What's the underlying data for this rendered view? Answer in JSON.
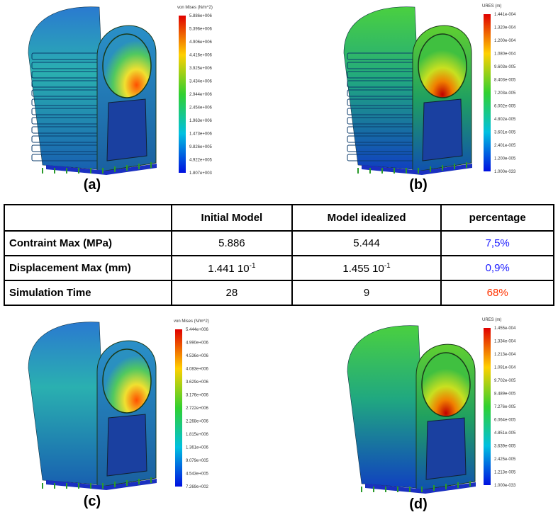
{
  "panels": [
    {
      "label": "(a)",
      "legend_title": "von Mises (N/m^2)",
      "legend_values": [
        "5.886e+006",
        "5.396e+006",
        "4.906e+006",
        "4.416e+006",
        "3.925e+006",
        "3.434e+006",
        "2.944e+006",
        "2.454e+006",
        "1.963e+006",
        "1.473e+006",
        "9.826e+005",
        "4.922e+005",
        "1.807e+003"
      ]
    },
    {
      "label": "(b)",
      "legend_title": "URES (m)",
      "legend_values": [
        "1.441e-004",
        "1.320e-004",
        "1.200e-004",
        "1.080e-004",
        "9.603e-005",
        "8.403e-005",
        "7.203e-005",
        "6.002e-005",
        "4.802e-005",
        "3.601e-005",
        "2.401e-005",
        "1.200e-005",
        "1.000e-033"
      ]
    },
    {
      "label": "(c)",
      "legend_title": "von Mises (N/m^2)",
      "legend_values": [
        "5.444e+006",
        "4.990e+006",
        "4.536e+006",
        "4.083e+006",
        "3.629e+006",
        "3.176e+006",
        "2.722e+006",
        "2.268e+006",
        "1.815e+006",
        "1.361e+006",
        "9.079e+005",
        "4.543e+005",
        "7.269e+002"
      ]
    },
    {
      "label": "(d)",
      "legend_title": "URES (m)",
      "legend_values": [
        "1.455e-004",
        "1.334e-004",
        "1.213e-004",
        "1.091e-004",
        "9.702e-005",
        "8.489e-005",
        "7.276e-005",
        "6.064e-005",
        "4.851e-005",
        "3.639e-005",
        "2.425e-005",
        "1.213e-005",
        "1.000e-033"
      ]
    }
  ],
  "table": {
    "header": [
      "Initial Model",
      "Model idealized",
      "percentage"
    ],
    "rows": [
      [
        "Contraint Max (MPa)",
        "5.886",
        "5.444",
        "7,5%"
      ],
      [
        "Displacement Max (mm)",
        {
          "base": "1.441 10",
          "exp": "-1"
        },
        {
          "base": "1.455 10",
          "exp": "-1"
        },
        "0,9%"
      ],
      [
        "Simulation Time",
        "28",
        "9",
        "68%"
      ]
    ]
  }
}
